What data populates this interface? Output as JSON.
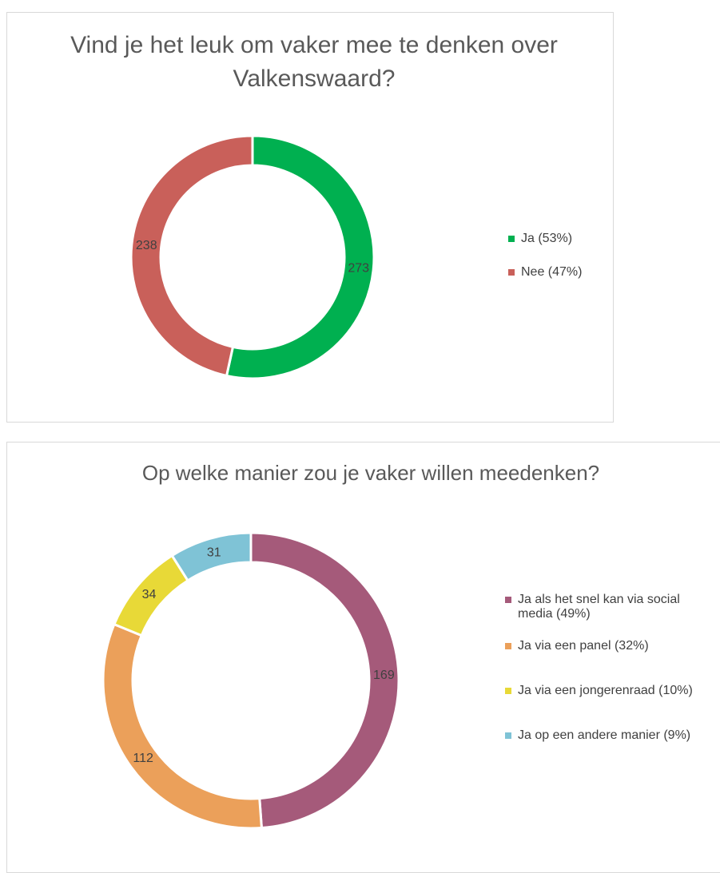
{
  "chart_data": [
    {
      "type": "pie",
      "title": "Vind je het leuk om vaker mee te denken over Valkenswaard?",
      "categories": [
        "Ja (53%)",
        "Nee (47%)"
      ],
      "values": [
        273,
        238
      ],
      "colors": [
        "#00b050",
        "#c9605a"
      ]
    },
    {
      "type": "pie",
      "title": "Op welke manier zou je vaker willen meedenken?",
      "categories": [
        "Ja als het snel kan via social media (49%)",
        "Ja via een panel (32%)",
        "Ja via een jongerenraad (10%)",
        "Ja op een andere manier (9%)"
      ],
      "values": [
        169,
        112,
        34,
        31
      ],
      "colors": [
        "#a55a7a",
        "#eba05a",
        "#e8d937",
        "#7fc3d6"
      ]
    }
  ]
}
